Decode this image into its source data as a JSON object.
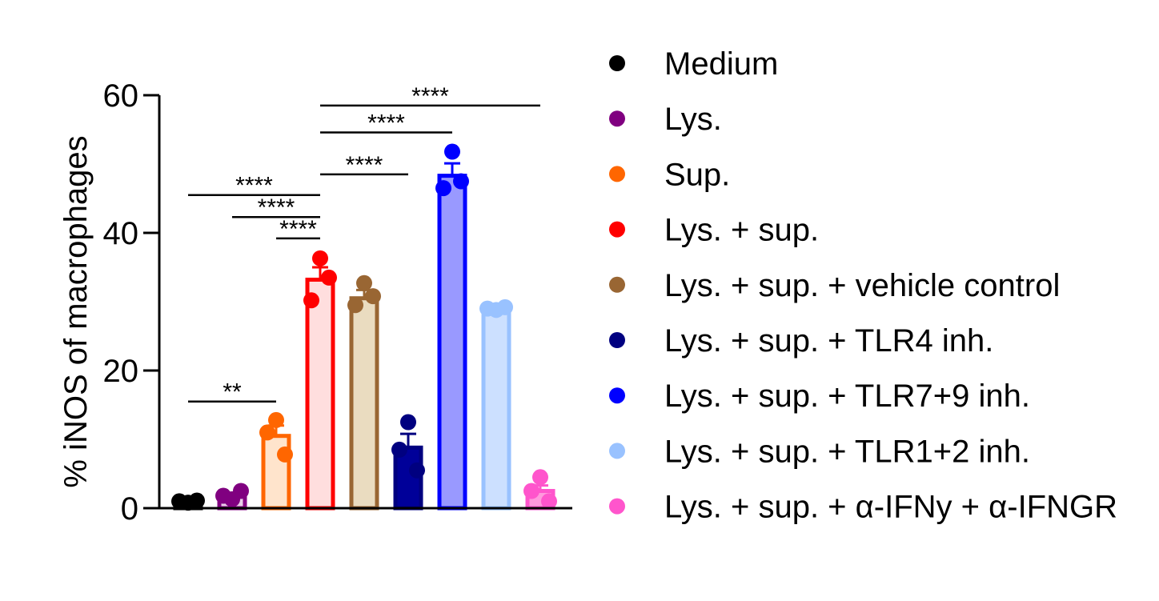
{
  "chart_data": {
    "type": "bar",
    "ylabel": "% iNOS of macrophages",
    "ylim": [
      0,
      60
    ],
    "yticks": [
      0,
      20,
      40,
      60
    ],
    "legend_position": "right",
    "grid": false,
    "series": [
      {
        "name": "Medium",
        "color": "#000000",
        "fill": "#000000",
        "mean": 1.0,
        "sem": 0.2,
        "points": [
          0.8,
          1.0,
          1.1
        ]
      },
      {
        "name": "Lys.",
        "color": "#800080",
        "fill": "#e8cfe8",
        "mean": 1.8,
        "sem": 0.4,
        "points": [
          1.3,
          1.8,
          2.5
        ]
      },
      {
        "name": "Sup.",
        "color": "#ff6600",
        "fill": "#ffe4cc",
        "mean": 10.5,
        "sem": 1.5,
        "points": [
          12.8,
          11.0,
          7.8
        ]
      },
      {
        "name": "Lys. + sup.",
        "color": "#ff0000",
        "fill": "#ffdede",
        "mean": 33.2,
        "sem": 1.8,
        "points": [
          36.3,
          30.2,
          33.5
        ]
      },
      {
        "name": "Lys. + sup. + vehicle control",
        "color": "#996633",
        "fill": "#eadcc0",
        "mean": 30.5,
        "sem": 1.2,
        "points": [
          32.7,
          29.5,
          30.8
        ]
      },
      {
        "name": "Lys. + sup. + TLR4 inh.",
        "color": "#000080",
        "fill": "#000099",
        "mean": 8.8,
        "sem": 2.0,
        "points": [
          12.5,
          8.5,
          5.5
        ]
      },
      {
        "name": "Lys. + sup. + TLR7+9 inh.",
        "color": "#0000ff",
        "fill": "#9999ff",
        "mean": 48.3,
        "sem": 1.8,
        "points": [
          51.8,
          46.5,
          47.5
        ]
      },
      {
        "name": "Lys. + sup. + TLR1+2 inh.",
        "color": "#99c2ff",
        "fill": "#cce0ff",
        "mean": 29.0,
        "sem": 0.3,
        "points": [
          28.8,
          29.0,
          29.2
        ]
      },
      {
        "name": "Lys. + sup. + α-IFNy + α-IFNGR",
        "color": "#ff55cc",
        "fill": "#ff99dd",
        "mean": 2.5,
        "sem": 0.8,
        "points": [
          4.5,
          2.5,
          1.0
        ]
      }
    ],
    "significance": [
      {
        "from": 0,
        "to": 2,
        "label": "**",
        "y": 15.5
      },
      {
        "from": 0,
        "to": 3,
        "label": "****",
        "y": 45.5
      },
      {
        "from": 1,
        "to": 3,
        "label": "****",
        "y": 42.3
      },
      {
        "from": 2,
        "to": 3,
        "label": "****",
        "y": 39.2
      },
      {
        "from": 3,
        "to": 5,
        "label": "****",
        "y": 48.5
      },
      {
        "from": 3,
        "to": 6,
        "label": "****",
        "y": 54.6
      },
      {
        "from": 3,
        "to": 8,
        "label": "****",
        "y": 58.5
      }
    ]
  }
}
